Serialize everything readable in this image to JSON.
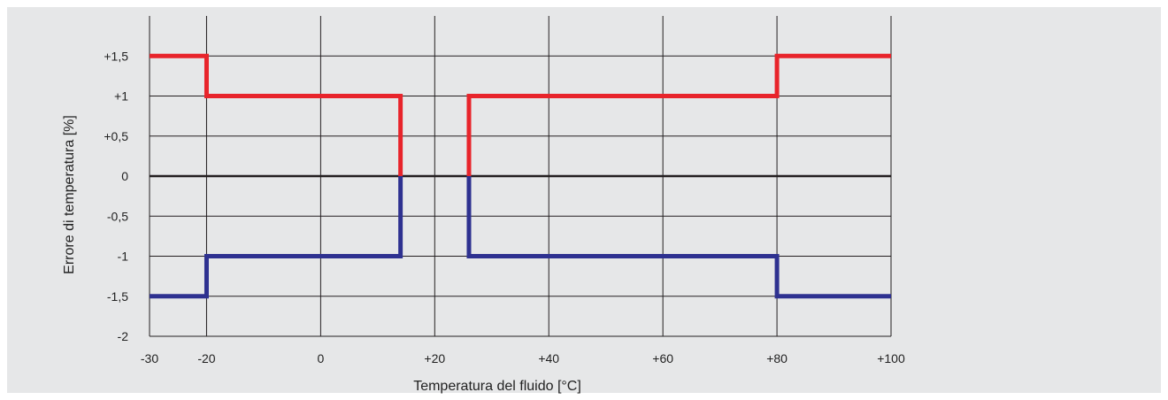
{
  "chart_data": {
    "type": "line",
    "title": "",
    "xlabel": "Temperatura del fluido [°C]",
    "ylabel": "Errore di temperatura [%]",
    "xlim": [
      -30,
      100
    ],
    "ylim": [
      -2,
      2
    ],
    "x_ticks": [
      -30,
      -20,
      0,
      20,
      40,
      60,
      80,
      100
    ],
    "x_tick_labels": [
      "-30",
      "-20",
      "0",
      "+20",
      "+40",
      "+60",
      "+80",
      "+100"
    ],
    "y_ticks": [
      1.5,
      1,
      0.5,
      0,
      -0.5,
      -1,
      -1.5,
      -2
    ],
    "y_tick_labels": [
      "+1,5",
      "+1",
      "+0,5",
      "0",
      "-0,5",
      "-1",
      "-1,5",
      "-2"
    ],
    "grid": true,
    "colors": {
      "upper": "#e8242b",
      "lower": "#2e3190",
      "zero": "#231f20",
      "grid": "#231f20"
    },
    "series": [
      {
        "key": "upper-left",
        "color": "#e8242b",
        "x": [
          -30,
          -20,
          -20,
          14,
          14
        ],
        "y": [
          1.5,
          1.5,
          1,
          1,
          0
        ]
      },
      {
        "key": "upper-right",
        "color": "#e8242b",
        "x": [
          26,
          26,
          80,
          80,
          100
        ],
        "y": [
          0,
          1,
          1,
          1.5,
          1.5
        ]
      },
      {
        "key": "lower-left",
        "color": "#2e3190",
        "x": [
          -30,
          -20,
          -20,
          14,
          14
        ],
        "y": [
          -1.5,
          -1.5,
          -1,
          -1,
          0
        ]
      },
      {
        "key": "lower-right",
        "color": "#2e3190",
        "x": [
          26,
          26,
          80,
          80,
          100
        ],
        "y": [
          0,
          -1,
          -1,
          -1.5,
          -1.5
        ]
      }
    ]
  }
}
